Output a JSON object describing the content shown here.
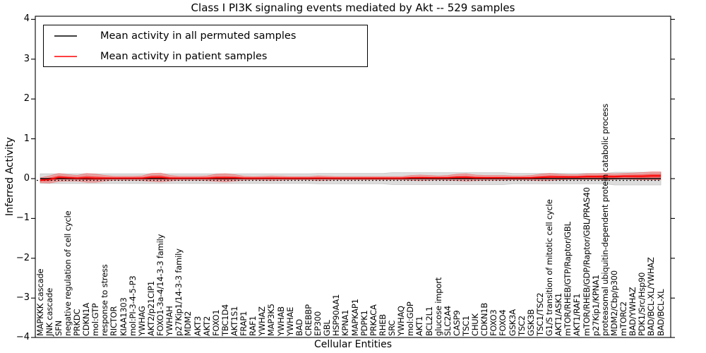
{
  "chart_data": {
    "type": "line",
    "title": "Class I PI3K signaling events mediated by Akt -- 529 samples",
    "sample_count": 529,
    "xlabel": "Cellular Entities",
    "ylabel": "Inferred Activity",
    "ylim": [
      -4,
      4
    ],
    "ytick_labels": [
      "4",
      "3",
      "2",
      "1",
      "0",
      "−1",
      "−2",
      "−3",
      "−4"
    ],
    "ytick_values": [
      4,
      3,
      2,
      1,
      0,
      -1,
      -2,
      -3,
      -4
    ],
    "grid": false,
    "legend_position": "upper left",
    "categories": [
      "MAPKKK cascade",
      "JNK cascade",
      "SFN",
      "negative regulation of cell cycle",
      "PRKDC",
      "CDKN1A",
      "mol:GTP",
      "response to stress",
      "RICTOR",
      "KIAA1303",
      "mol:PI-3-4-5-P3",
      "YWHAG",
      "AKT2/p21CIP1",
      "FOXO1-3a-4/14-3-3 family",
      "YWHAH",
      "p27Kip1/14-3-3 family",
      "MDM2",
      "AKT3",
      "AKT2",
      "FOXO1",
      "TBC1D4",
      "AKT1S1",
      "FRAP1",
      "RAF1",
      "YWHAZ",
      "MAP3K5",
      "YWHAB",
      "YWHAE",
      "BAD",
      "CREBBP",
      "EP300",
      "GBL",
      "HSP90AA1",
      "KPNA1",
      "MAPKAP1",
      "PDPK1",
      "PRKACA",
      "RHEB",
      "SRC",
      "YWHAQ",
      "mol:GDP",
      "AKT1",
      "BCL2L1",
      "glucose import",
      "SLC2A4",
      "CASP9",
      "TSC1",
      "CHUK",
      "CDKN1B",
      "FOXO3",
      "FOXO4",
      "GSK3A",
      "TSC2",
      "GSK3B",
      "TSC1/TSC2",
      "G1/S transition of mitotic cell cycle",
      "AKT1/ASK1",
      "mTOR/RHEB/GTP/Raptor/GBL",
      "AKT1/RAF1",
      "mTOR/RHEB/GDP/Raptor/GBL/PRAS40",
      "p27Kip1/KPNA1",
      "proteasomal ubiquitin-dependent protein catabolic process",
      "MDM2/Cbp/p300",
      "mTORC2",
      "BAD/YWHAZ",
      "PDK1/Src/Hsp90",
      "BAD/BCL-XL/YWHAZ",
      "BAD/BCL-XL"
    ],
    "series": [
      {
        "name": "Mean activity in all permuted samples",
        "color": "#000000",
        "band_color": "#dcdcdc",
        "values": [
          0,
          0,
          0,
          0,
          0,
          0,
          0,
          0,
          0,
          0,
          0,
          0,
          0,
          0,
          0,
          0,
          0,
          0,
          0,
          0,
          0,
          0,
          0,
          0,
          0,
          0,
          0,
          0,
          0,
          0,
          0,
          0,
          0,
          0,
          0,
          0,
          0,
          0,
          0,
          0,
          0,
          0,
          0,
          0,
          0,
          0,
          0,
          0,
          0,
          0,
          0,
          0,
          0,
          0,
          0,
          0,
          0,
          0,
          0,
          0,
          0,
          0,
          0,
          0,
          0,
          0,
          0,
          0
        ],
        "spread": [
          0.12,
          0.12,
          0.12,
          0.12,
          0.12,
          0.12,
          0.12,
          0.12,
          0.12,
          0.12,
          0.12,
          0.12,
          0.12,
          0.12,
          0.12,
          0.12,
          0.12,
          0.12,
          0.12,
          0.12,
          0.12,
          0.12,
          0.12,
          0.12,
          0.12,
          0.12,
          0.12,
          0.12,
          0.12,
          0.12,
          0.13,
          0.13,
          0.13,
          0.13,
          0.13,
          0.13,
          0.13,
          0.13,
          0.15,
          0.15,
          0.15,
          0.15,
          0.15,
          0.15,
          0.15,
          0.15,
          0.15,
          0.15,
          0.15,
          0.15,
          0.15,
          0.13,
          0.13,
          0.13,
          0.13,
          0.13,
          0.13,
          0.13,
          0.13,
          0.13,
          0.13,
          0.13,
          0.16,
          0.16,
          0.16,
          0.16,
          0.16,
          0.16
        ]
      },
      {
        "name": "Mean activity in patient samples",
        "color": "#ff0000",
        "band_color": "rgba(255,60,60,0.32)",
        "values": [
          -0.04,
          -0.02,
          0.03,
          0.02,
          0.01,
          0.02,
          0.01,
          0.01,
          0.01,
          0.01,
          0.01,
          0.01,
          0.03,
          0.03,
          0.01,
          0.01,
          0.01,
          0.01,
          0.01,
          0.02,
          0.02,
          0.02,
          0.01,
          0.01,
          0.01,
          0.01,
          0.01,
          0.01,
          0.01,
          0.01,
          0.01,
          0.01,
          0.01,
          0.01,
          0.01,
          0.01,
          0.01,
          0.01,
          0.01,
          0.01,
          0.02,
          0.02,
          0.02,
          0.02,
          0.02,
          0.03,
          0.03,
          0.02,
          0.02,
          0.02,
          0.02,
          0.02,
          0.02,
          0.02,
          0.03,
          0.04,
          0.04,
          0.04,
          0.04,
          0.05,
          0.05,
          0.05,
          0.05,
          0.06,
          0.06,
          0.06,
          0.07,
          0.07
        ],
        "spread": [
          0.06,
          0.09,
          0.1,
          0.08,
          0.07,
          0.11,
          0.1,
          0.07,
          0.05,
          0.05,
          0.05,
          0.06,
          0.1,
          0.11,
          0.07,
          0.05,
          0.05,
          0.05,
          0.06,
          0.09,
          0.1,
          0.08,
          0.05,
          0.04,
          0.05,
          0.06,
          0.05,
          0.04,
          0.04,
          0.04,
          0.06,
          0.05,
          0.04,
          0.04,
          0.04,
          0.04,
          0.04,
          0.04,
          0.04,
          0.04,
          0.06,
          0.07,
          0.06,
          0.05,
          0.06,
          0.08,
          0.09,
          0.07,
          0.06,
          0.06,
          0.06,
          0.05,
          0.05,
          0.06,
          0.08,
          0.09,
          0.07,
          0.06,
          0.06,
          0.07,
          0.07,
          0.08,
          0.07,
          0.07,
          0.08,
          0.09,
          0.1,
          0.1
        ]
      }
    ]
  }
}
